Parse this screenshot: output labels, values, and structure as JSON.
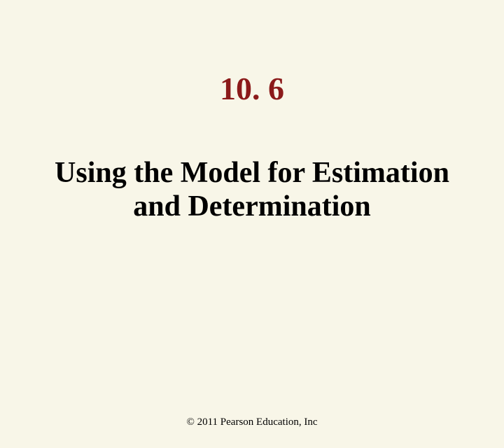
{
  "slide": {
    "section_number": "10. 6",
    "title_line1": "Using the Model for Estimation",
    "title_line2": "and Determination",
    "copyright": "© 2011 Pearson Education, Inc"
  },
  "style": {
    "background_color": "#f8f6e8",
    "section_number_color": "#8b1a1a",
    "title_color": "#000000",
    "copyright_color": "#000000",
    "font_family": "Times New Roman",
    "section_number_fontsize": 46,
    "title_fontsize": 42,
    "copyright_fontsize": 15
  }
}
